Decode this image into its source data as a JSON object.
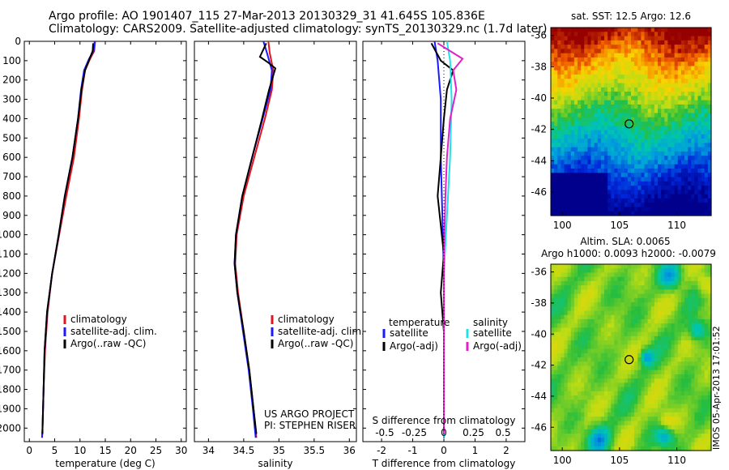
{
  "header": {
    "title_line1": "Argo profile: AO 1901407_115 27-Mar-2013 20130329_31 41.645S 105.836E",
    "title_line2": "Climatology: CARS2009. Satellite-adjusted climatology: synTS_20130329.nc (1.7d later)"
  },
  "stamp": "IMOS 05-Apr-2013 17:01:52",
  "colors": {
    "climatology": "#e8141c",
    "satellite": "#1a1aff",
    "argo": "#000000",
    "sat_salinity": "#22e0e8",
    "argo_salinity": "#e020c8"
  },
  "chart_data": [
    {
      "type": "line",
      "id": "temperature",
      "xlabel": "temperature (deg C)",
      "xlim": [
        -1,
        31
      ],
      "xticks": [
        0,
        5,
        10,
        15,
        20,
        25,
        30
      ],
      "ylim": [
        2070,
        0
      ],
      "yticks": [
        0,
        100,
        200,
        300,
        400,
        500,
        600,
        700,
        800,
        900,
        1000,
        1100,
        1200,
        1300,
        1400,
        1500,
        1600,
        1700,
        1800,
        1900,
        2000
      ],
      "legend": [
        "climatology",
        "satellite-adj. clim.",
        "Argo(..raw -QC)"
      ],
      "series": [
        {
          "name": "climatology",
          "color": "#e8141c",
          "points": [
            [
              13.0,
              0
            ],
            [
              12.8,
              50
            ],
            [
              12.0,
              90
            ],
            [
              11.0,
              150
            ],
            [
              10.4,
              250
            ],
            [
              9.8,
              400
            ],
            [
              8.8,
              600
            ],
            [
              7.3,
              800
            ],
            [
              5.9,
              1000
            ],
            [
              4.5,
              1200
            ],
            [
              3.6,
              1400
            ],
            [
              3.1,
              1600
            ],
            [
              2.8,
              1800
            ],
            [
              2.6,
              2000
            ],
            [
              2.5,
              2050
            ]
          ]
        },
        {
          "name": "satellite-adj. clim.",
          "color": "#1a1aff",
          "points": [
            [
              12.9,
              0
            ],
            [
              12.7,
              50
            ],
            [
              11.8,
              90
            ],
            [
              10.8,
              150
            ],
            [
              10.2,
              250
            ],
            [
              9.6,
              400
            ],
            [
              8.5,
              600
            ],
            [
              7.0,
              800
            ],
            [
              5.8,
              1000
            ],
            [
              4.5,
              1200
            ],
            [
              3.5,
              1400
            ],
            [
              3.0,
              1600
            ],
            [
              2.8,
              1800
            ],
            [
              2.6,
              2000
            ],
            [
              2.5,
              2050
            ]
          ]
        },
        {
          "name": "Argo(..raw -QC)",
          "color": "#000000",
          "points": [
            [
              12.6,
              10
            ],
            [
              12.5,
              50
            ],
            [
              11.9,
              90
            ],
            [
              11.0,
              150
            ],
            [
              10.3,
              250
            ],
            [
              9.6,
              400
            ],
            [
              8.5,
              600
            ],
            [
              7.0,
              800
            ],
            [
              5.8,
              1000
            ],
            [
              4.5,
              1200
            ],
            [
              3.5,
              1400
            ],
            [
              3.0,
              1600
            ],
            [
              2.8,
              1800
            ],
            [
              2.6,
              2000
            ],
            [
              2.6,
              2030
            ]
          ]
        }
      ]
    },
    {
      "type": "line",
      "id": "salinity",
      "xlabel": "salinity",
      "xlim": [
        33.8,
        36.1
      ],
      "xticks": [
        34,
        34.5,
        35,
        35.5,
        36
      ],
      "ylim": [
        2070,
        0
      ],
      "legend": [
        "climatology",
        "satellite-adj. clim.",
        "Argo(..raw -QC)"
      ],
      "annotation": [
        "US ARGO PROJECT",
        "PI: STEPHEN RISER"
      ],
      "series": [
        {
          "name": "climatology",
          "color": "#e8141c",
          "points": [
            [
              34.85,
              0
            ],
            [
              34.87,
              60
            ],
            [
              34.92,
              150
            ],
            [
              34.9,
              250
            ],
            [
              34.8,
              400
            ],
            [
              34.65,
              600
            ],
            [
              34.5,
              800
            ],
            [
              34.4,
              1000
            ],
            [
              34.38,
              1150
            ],
            [
              34.42,
              1300
            ],
            [
              34.5,
              1500
            ],
            [
              34.58,
              1700
            ],
            [
              34.64,
              1900
            ],
            [
              34.68,
              2050
            ]
          ]
        },
        {
          "name": "satellite-adj. clim.",
          "color": "#1a1aff",
          "points": [
            [
              34.78,
              0
            ],
            [
              34.83,
              60
            ],
            [
              34.9,
              150
            ],
            [
              34.88,
              250
            ],
            [
              34.77,
              400
            ],
            [
              34.62,
              600
            ],
            [
              34.48,
              800
            ],
            [
              34.39,
              1000
            ],
            [
              34.37,
              1150
            ],
            [
              34.41,
              1300
            ],
            [
              34.49,
              1500
            ],
            [
              34.57,
              1700
            ],
            [
              34.63,
              1900
            ],
            [
              34.67,
              2050
            ]
          ]
        },
        {
          "name": "Argo(..raw -QC)",
          "color": "#000000",
          "points": [
            [
              34.82,
              10
            ],
            [
              34.73,
              80
            ],
            [
              34.85,
              110
            ],
            [
              34.95,
              140
            ],
            [
              34.86,
              250
            ],
            [
              34.76,
              400
            ],
            [
              34.62,
              600
            ],
            [
              34.48,
              800
            ],
            [
              34.39,
              1000
            ],
            [
              34.37,
              1150
            ],
            [
              34.41,
              1300
            ],
            [
              34.5,
              1500
            ],
            [
              34.58,
              1700
            ],
            [
              34.64,
              1900
            ],
            [
              34.68,
              2030
            ]
          ]
        }
      ]
    },
    {
      "type": "line",
      "id": "difference",
      "xlabel": "T difference from climatology",
      "xlabel_top": "S difference from climatology",
      "xlim": [
        -2.6,
        2.6
      ],
      "xticks": [
        -2,
        -1,
        0,
        1,
        2
      ],
      "sticks": [
        "-0.5",
        "-0.25",
        "0",
        "0.25",
        "0.5"
      ],
      "sticks_pos": [
        -1.9,
        -0.95,
        0,
        0.95,
        1.9
      ],
      "ylim": [
        2070,
        0
      ],
      "legend_headers": [
        "temperature",
        "salinity"
      ],
      "legend": [
        "satellite",
        "Argo(-adj)",
        "satellite",
        "Argo(-adj)"
      ],
      "series": [
        {
          "name": "T satellite",
          "color": "#1a1aff",
          "points": [
            [
              -0.3,
              0
            ],
            [
              -0.2,
              100
            ],
            [
              -0.1,
              300
            ],
            [
              -0.1,
              600
            ],
            [
              -0.05,
              900
            ],
            [
              0.0,
              1200
            ],
            [
              0.0,
              1600
            ],
            [
              0.0,
              2050
            ]
          ]
        },
        {
          "name": "T Argo(-adj)",
          "color": "#000000",
          "points": [
            [
              -0.4,
              10
            ],
            [
              -0.1,
              100
            ],
            [
              0.3,
              150
            ],
            [
              0.1,
              250
            ],
            [
              0.0,
              400
            ],
            [
              -0.1,
              600
            ],
            [
              -0.2,
              800
            ],
            [
              0.0,
              1100
            ],
            [
              -0.1,
              1300
            ],
            [
              0.0,
              1500
            ],
            [
              0.0,
              2030
            ]
          ]
        },
        {
          "name": "S satellite",
          "color": "#22e0e8",
          "points": [
            [
              0.1,
              0
            ],
            [
              0.2,
              100
            ],
            [
              0.25,
              300
            ],
            [
              0.2,
              600
            ],
            [
              0.1,
              900
            ],
            [
              0.0,
              1200
            ],
            [
              0.0,
              2050
            ]
          ]
        },
        {
          "name": "S Argo(-adj)",
          "color": "#e020c8",
          "points": [
            [
              -0.2,
              10
            ],
            [
              0.6,
              90
            ],
            [
              0.3,
              150
            ],
            [
              0.4,
              250
            ],
            [
              0.2,
              400
            ],
            [
              0.1,
              600
            ],
            [
              0.05,
              800
            ],
            [
              0.0,
              1100
            ],
            [
              0.0,
              2030
            ]
          ]
        }
      ]
    },
    {
      "type": "heatmap",
      "id": "sst-map",
      "title": "sat. SST: 12.5  Argo: 12.6",
      "xlim": [
        99,
        113
      ],
      "ylim": [
        -47.5,
        -35.5
      ],
      "xticks": [
        100,
        105,
        110
      ],
      "yticks": [
        -36,
        -38,
        -40,
        -42,
        -44,
        -46
      ],
      "marker": [
        105.836,
        -41.645
      ]
    },
    {
      "type": "heatmap",
      "id": "sla-map",
      "title": "Altim. SLA: 0.0065",
      "subtitle": "Argo h1000: 0.0093 h2000: -0.0079",
      "xlim": [
        99,
        113
      ],
      "ylim": [
        -47.5,
        -35.5
      ],
      "xticks": [
        100,
        105,
        110
      ],
      "yticks": [
        -36,
        -38,
        -40,
        -42,
        -44,
        -46
      ],
      "marker": [
        105.836,
        -41.645
      ]
    }
  ]
}
